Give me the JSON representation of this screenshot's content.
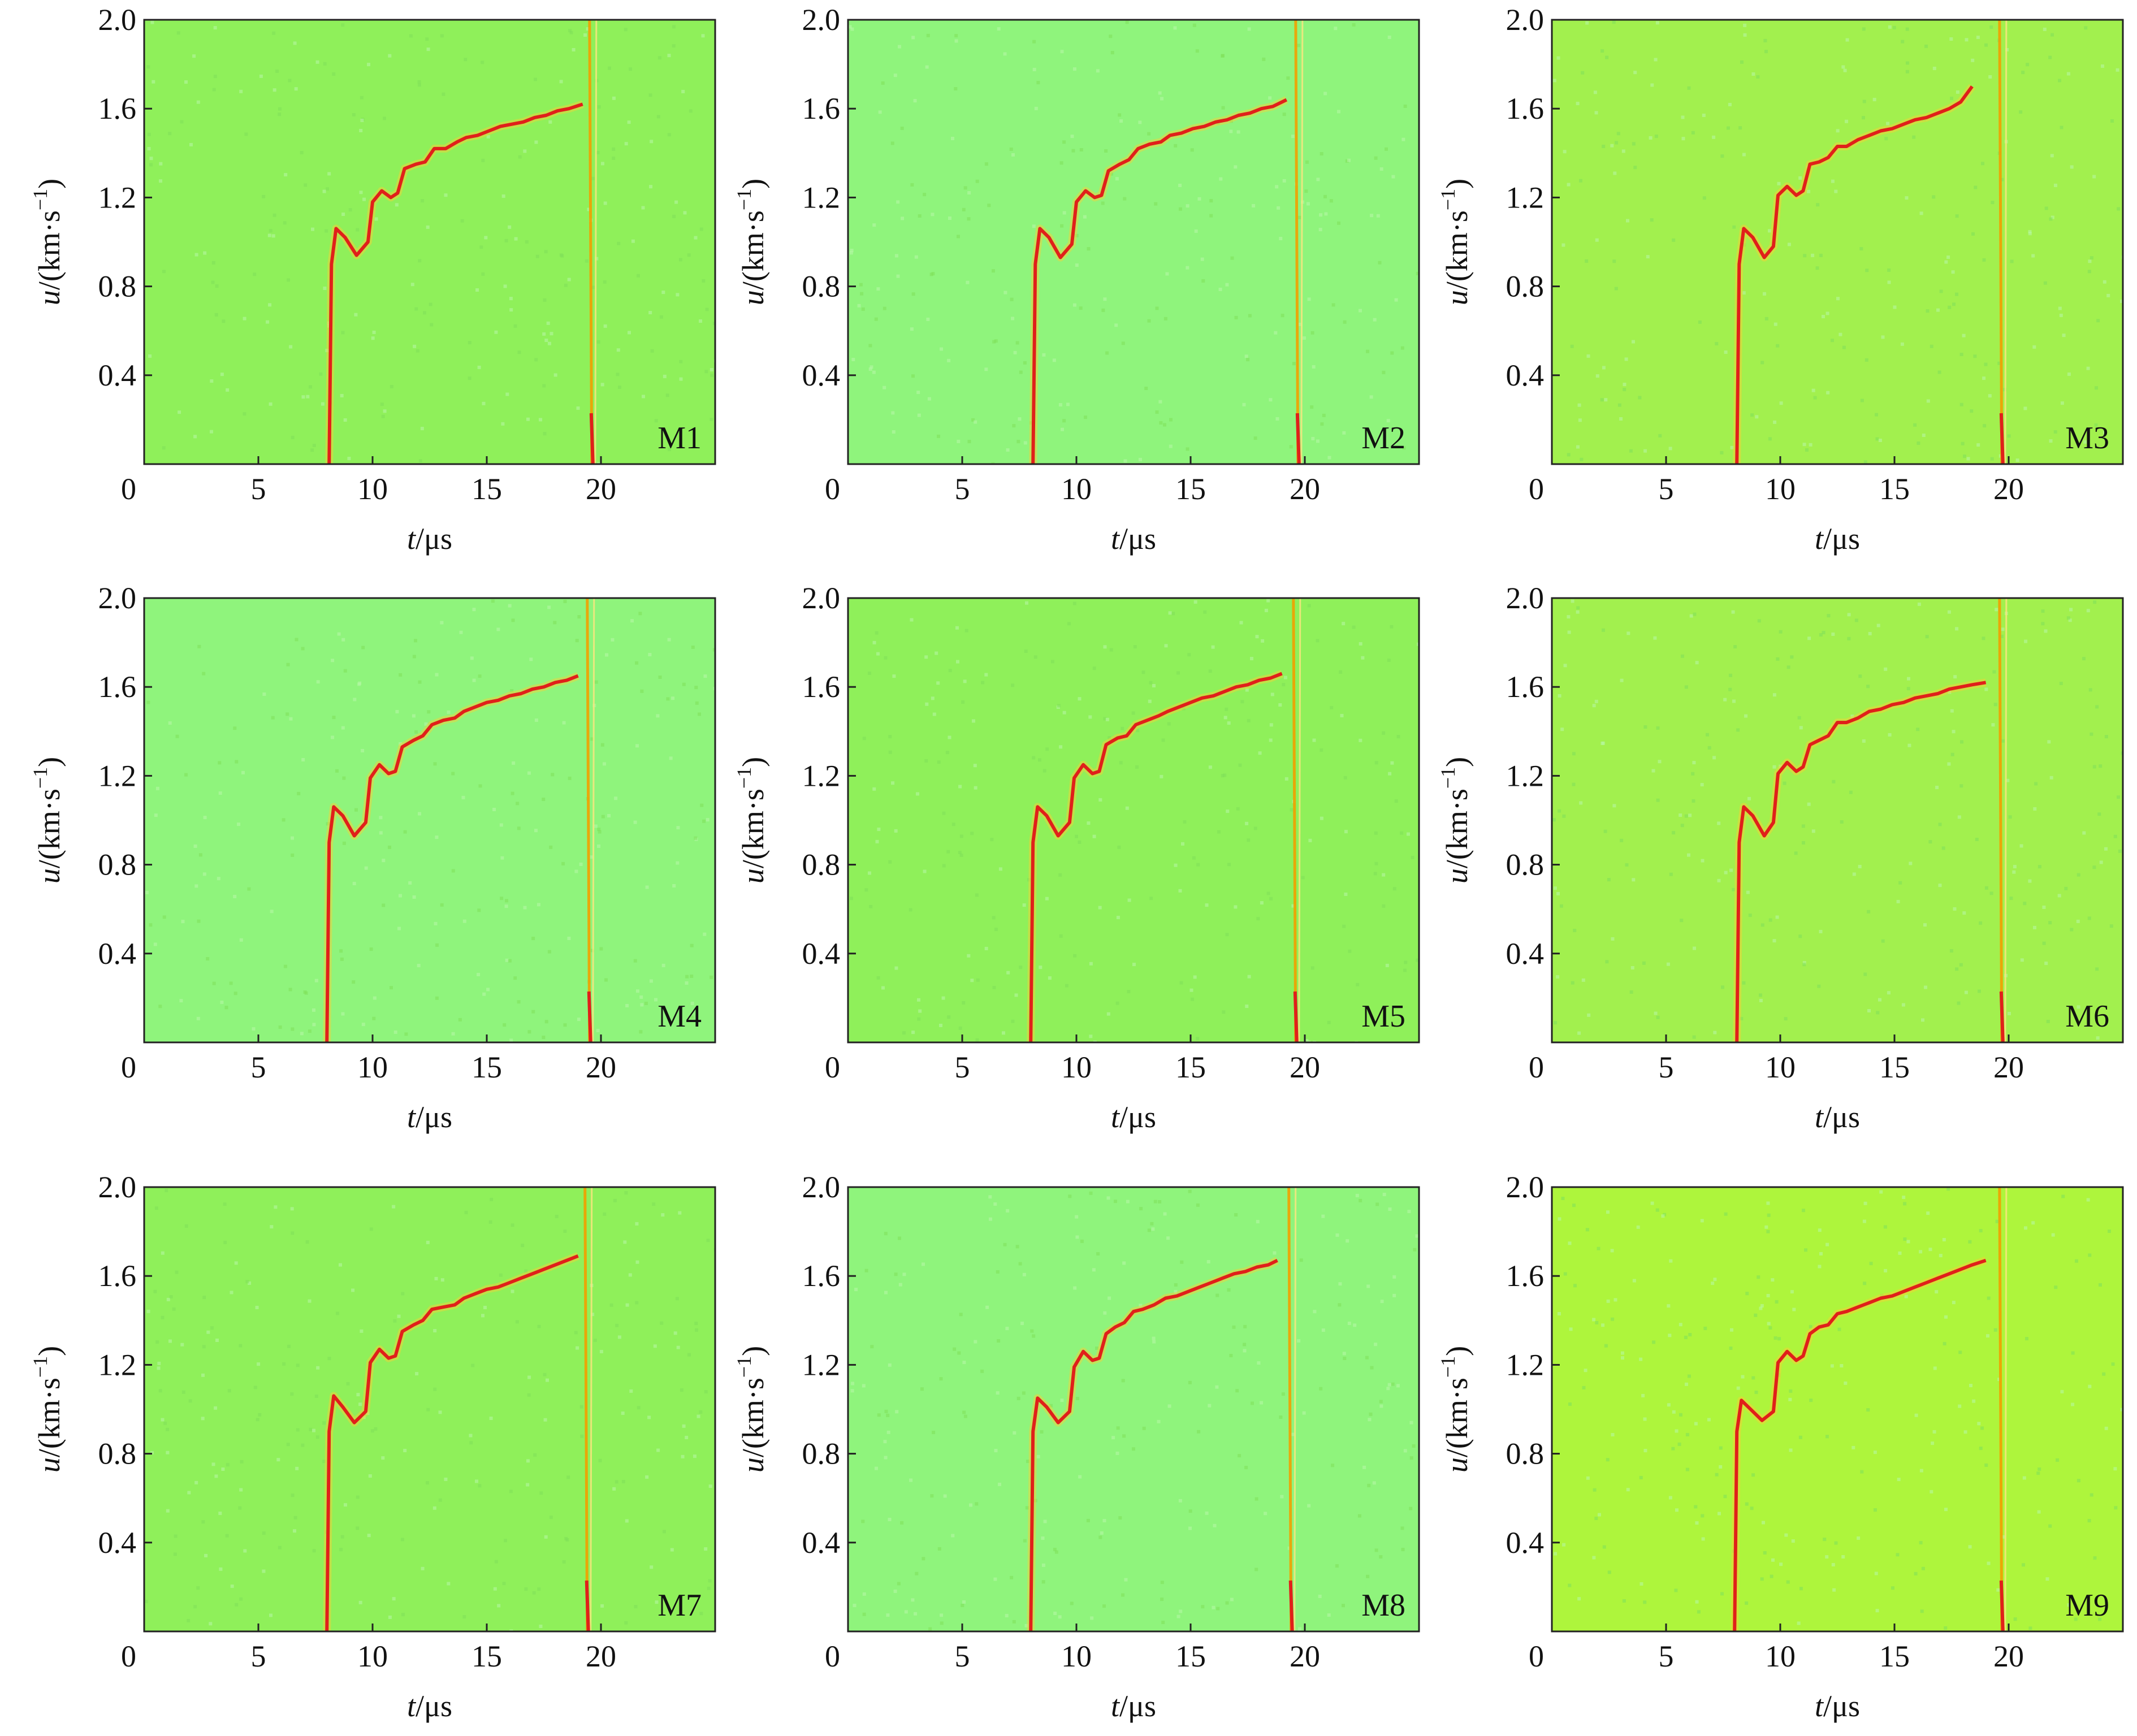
{
  "chart_data": {
    "type": "line",
    "layout": "3x3 grid of spectrogram panels",
    "shared": {
      "xlim": [
        0,
        25
      ],
      "ylim": [
        0,
        2.0
      ],
      "xticks": [
        "0",
        "5",
        "10",
        "15",
        "20"
      ],
      "yticks": [
        "0.4",
        "0.8",
        "1.2",
        "1.6",
        "2.0"
      ],
      "xlabel_var": "t",
      "xlabel_unit": "/μs",
      "ylabel_var": "u",
      "ylabel_unit": "/(km·s",
      "ylabel_sup": "−1",
      "ylabel_close": ")",
      "trace_color": "#e0201a",
      "jump_color": "#f2a000"
    },
    "panels": [
      {
        "label": "M1",
        "bg": "#8ff05a",
        "rise": 8.1,
        "end": 19.2,
        "jump": 19.5,
        "x": [
          8.1,
          8.2,
          8.4,
          8.8,
          9.3,
          9.8,
          10.0,
          10.4,
          10.8,
          11.1,
          11.4,
          11.9,
          12.3,
          12.7,
          13.2,
          13.7,
          14.1,
          14.6,
          15.1,
          15.6,
          16.1,
          16.6,
          17.1,
          17.6,
          18.1,
          18.6,
          19.2
        ],
        "y": [
          0.0,
          0.9,
          1.06,
          1.02,
          0.94,
          1.0,
          1.18,
          1.23,
          1.2,
          1.22,
          1.33,
          1.35,
          1.36,
          1.42,
          1.42,
          1.45,
          1.47,
          1.48,
          1.5,
          1.52,
          1.53,
          1.54,
          1.56,
          1.57,
          1.59,
          1.6,
          1.62
        ]
      },
      {
        "label": "M2",
        "bg": "#8ff47c",
        "rise": 8.1,
        "end": 19.2,
        "jump": 19.6,
        "x": [
          8.1,
          8.2,
          8.4,
          8.8,
          9.3,
          9.8,
          10.0,
          10.4,
          10.8,
          11.1,
          11.4,
          11.9,
          12.3,
          12.7,
          13.2,
          13.7,
          14.1,
          14.6,
          15.1,
          15.6,
          16.1,
          16.6,
          17.1,
          17.6,
          18.1,
          18.6,
          19.2
        ],
        "y": [
          0.0,
          0.9,
          1.06,
          1.02,
          0.93,
          0.99,
          1.18,
          1.23,
          1.2,
          1.21,
          1.32,
          1.35,
          1.37,
          1.42,
          1.44,
          1.45,
          1.48,
          1.49,
          1.51,
          1.52,
          1.54,
          1.55,
          1.57,
          1.58,
          1.6,
          1.61,
          1.64
        ]
      },
      {
        "label": "M3",
        "bg": "#a2f04e",
        "rise": 8.1,
        "end": 18.4,
        "jump": 19.6,
        "x": [
          8.1,
          8.2,
          8.4,
          8.8,
          9.3,
          9.7,
          9.9,
          10.3,
          10.7,
          11.0,
          11.3,
          11.7,
          12.1,
          12.5,
          12.9,
          13.4,
          13.9,
          14.4,
          14.9,
          15.4,
          15.9,
          16.4,
          16.9,
          17.4,
          17.9,
          18.4
        ],
        "y": [
          0.0,
          0.9,
          1.06,
          1.02,
          0.93,
          0.98,
          1.21,
          1.25,
          1.21,
          1.23,
          1.35,
          1.36,
          1.38,
          1.43,
          1.43,
          1.46,
          1.48,
          1.5,
          1.51,
          1.53,
          1.55,
          1.56,
          1.58,
          1.6,
          1.63,
          1.7
        ]
      },
      {
        "label": "M4",
        "bg": "#8ff47c",
        "rise": 8.0,
        "end": 19.0,
        "jump": 19.4,
        "x": [
          8.0,
          8.1,
          8.3,
          8.7,
          9.2,
          9.7,
          9.9,
          10.3,
          10.7,
          11.0,
          11.3,
          11.8,
          12.2,
          12.6,
          13.1,
          13.6,
          14.0,
          14.5,
          15.0,
          15.5,
          16.0,
          16.5,
          17.0,
          17.5,
          18.0,
          18.5,
          19.0
        ],
        "y": [
          0.0,
          0.9,
          1.06,
          1.02,
          0.93,
          0.99,
          1.19,
          1.25,
          1.21,
          1.22,
          1.33,
          1.36,
          1.38,
          1.43,
          1.45,
          1.46,
          1.49,
          1.51,
          1.53,
          1.54,
          1.56,
          1.57,
          1.59,
          1.6,
          1.62,
          1.63,
          1.65
        ]
      },
      {
        "label": "M5",
        "bg": "#8ff05a",
        "rise": 8.0,
        "end": 19.0,
        "jump": 19.5,
        "x": [
          8.0,
          8.1,
          8.3,
          8.7,
          9.2,
          9.7,
          9.9,
          10.3,
          10.7,
          11.0,
          11.3,
          11.8,
          12.2,
          12.6,
          13.1,
          13.6,
          14.0,
          14.5,
          15.0,
          15.5,
          16.0,
          16.5,
          17.0,
          17.5,
          18.0,
          18.5,
          19.0
        ],
        "y": [
          0.0,
          0.9,
          1.06,
          1.02,
          0.93,
          0.99,
          1.19,
          1.25,
          1.21,
          1.22,
          1.34,
          1.37,
          1.38,
          1.43,
          1.45,
          1.47,
          1.49,
          1.51,
          1.53,
          1.55,
          1.56,
          1.58,
          1.6,
          1.61,
          1.63,
          1.64,
          1.66
        ]
      },
      {
        "label": "M6",
        "bg": "#a2f04e",
        "rise": 8.1,
        "end": 19.0,
        "jump": 19.6,
        "x": [
          8.1,
          8.2,
          8.4,
          8.8,
          9.3,
          9.7,
          9.9,
          10.3,
          10.7,
          11.0,
          11.3,
          11.7,
          12.1,
          12.5,
          12.9,
          13.4,
          13.9,
          14.4,
          14.9,
          15.4,
          15.9,
          16.4,
          16.9,
          17.4,
          17.9,
          18.4,
          19.0
        ],
        "y": [
          0.0,
          0.9,
          1.06,
          1.02,
          0.93,
          0.99,
          1.21,
          1.26,
          1.22,
          1.24,
          1.34,
          1.36,
          1.38,
          1.44,
          1.44,
          1.46,
          1.49,
          1.5,
          1.52,
          1.53,
          1.55,
          1.56,
          1.57,
          1.59,
          1.6,
          1.61,
          1.62
        ]
      },
      {
        "label": "M7",
        "bg": "#8ff05a",
        "rise": 8.0,
        "end": 19.0,
        "jump": 19.3,
        "x": [
          8.0,
          8.1,
          8.3,
          8.7,
          9.2,
          9.7,
          9.9,
          10.3,
          10.7,
          11.0,
          11.3,
          11.8,
          12.2,
          12.6,
          13.1,
          13.6,
          14.0,
          14.5,
          15.0,
          15.5,
          16.0,
          16.5,
          17.0,
          17.5,
          18.0,
          18.5,
          19.0
        ],
        "y": [
          0.0,
          0.9,
          1.06,
          1.01,
          0.94,
          0.99,
          1.21,
          1.27,
          1.23,
          1.24,
          1.35,
          1.38,
          1.4,
          1.45,
          1.46,
          1.47,
          1.5,
          1.52,
          1.54,
          1.55,
          1.57,
          1.59,
          1.61,
          1.63,
          1.65,
          1.67,
          1.69
        ]
      },
      {
        "label": "M8",
        "bg": "#8ff47c",
        "rise": 8.0,
        "end": 18.8,
        "jump": 19.3,
        "x": [
          8.0,
          8.1,
          8.3,
          8.7,
          9.2,
          9.7,
          9.9,
          10.3,
          10.7,
          11.0,
          11.3,
          11.7,
          12.1,
          12.5,
          12.9,
          13.4,
          13.9,
          14.4,
          14.9,
          15.4,
          15.9,
          16.4,
          16.9,
          17.4,
          17.9,
          18.4,
          18.8
        ],
        "y": [
          0.0,
          0.9,
          1.05,
          1.01,
          0.94,
          0.99,
          1.19,
          1.26,
          1.22,
          1.23,
          1.34,
          1.37,
          1.39,
          1.44,
          1.45,
          1.47,
          1.5,
          1.51,
          1.53,
          1.55,
          1.57,
          1.59,
          1.61,
          1.62,
          1.64,
          1.65,
          1.67
        ]
      },
      {
        "label": "M9",
        "bg": "#aef53c",
        "rise": 8.0,
        "end": 19.0,
        "jump": 19.6,
        "x": [
          8.0,
          8.1,
          8.3,
          8.7,
          9.2,
          9.7,
          9.9,
          10.3,
          10.7,
          11.0,
          11.3,
          11.7,
          12.1,
          12.5,
          12.9,
          13.4,
          13.9,
          14.4,
          14.9,
          15.4,
          15.9,
          16.4,
          16.9,
          17.4,
          17.9,
          18.4,
          19.0
        ],
        "y": [
          0.0,
          0.9,
          1.04,
          1.0,
          0.95,
          0.99,
          1.21,
          1.26,
          1.22,
          1.24,
          1.34,
          1.37,
          1.38,
          1.43,
          1.44,
          1.46,
          1.48,
          1.5,
          1.51,
          1.53,
          1.55,
          1.57,
          1.59,
          1.61,
          1.63,
          1.65,
          1.67
        ]
      }
    ]
  }
}
